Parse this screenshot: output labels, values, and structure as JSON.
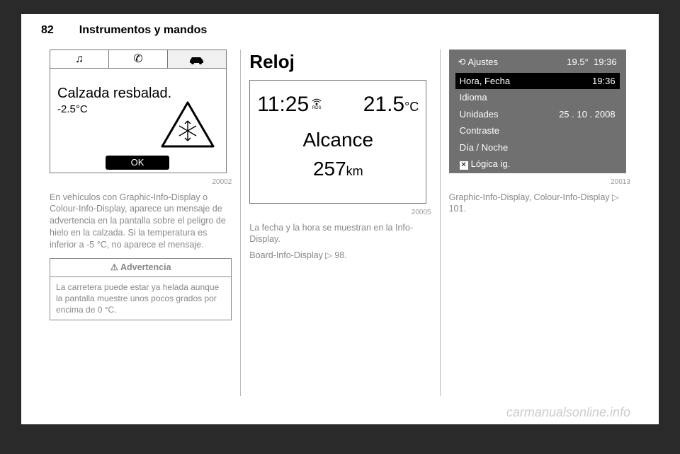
{
  "header": {
    "page_number": "82",
    "section": "Instrumentos y mandos"
  },
  "col1": {
    "fig1": {
      "tab_music_glyph": "♫",
      "tab_phone_glyph": "✆",
      "message": "Calzada resbalad.",
      "temperature": "-2.5°C",
      "ok_label": "OK",
      "fig_number": "20002"
    },
    "paragraph_html": "En vehículos con Graphic-Info-Display o Colour-Info-Display, aparece un mensaje de advertencia en la pantalla sobre el peligro de hielo en la calzada. Si la temperatura es inferior a -5 °C, no aparece el mensaje.",
    "warn": {
      "title": "⚠ Advertencia",
      "body": "La carretera puede estar ya helada aunque la pantalla muestre unos pocos grados por encima de 0 °C."
    }
  },
  "col2": {
    "title": "Reloj",
    "fig2": {
      "time": "11:25",
      "temp_main": "21.5",
      "temp_unit": "°C",
      "label": "Alcance",
      "range_val": "257",
      "range_unit": "km",
      "fig_number": "20005"
    },
    "p1": "La fecha y la hora se muestran en la Info-Display.",
    "p2": "Board-Info-Display ▷ 98."
  },
  "col3": {
    "fig3": {
      "top_icon": "⟲",
      "top_label": "Ajustes",
      "top_temp": "19.5°",
      "top_time": "19:36",
      "rows": [
        {
          "label": "Hora, Fecha",
          "value": "19:36",
          "selected": true
        },
        {
          "label": "Idioma",
          "value": ""
        },
        {
          "label": "Unidades",
          "value": "25 . 10 . 2008"
        },
        {
          "label": "Contraste",
          "value": ""
        },
        {
          "label": "Día / Noche",
          "value": ""
        },
        {
          "label": "Lógica ig.",
          "value": "",
          "checkbox": true
        }
      ],
      "fig_number": "20013"
    },
    "p1": "Graphic-Info-Display, Colour-Info-Display ▷ 101."
  },
  "watermark": "carmanualsonline.info"
}
